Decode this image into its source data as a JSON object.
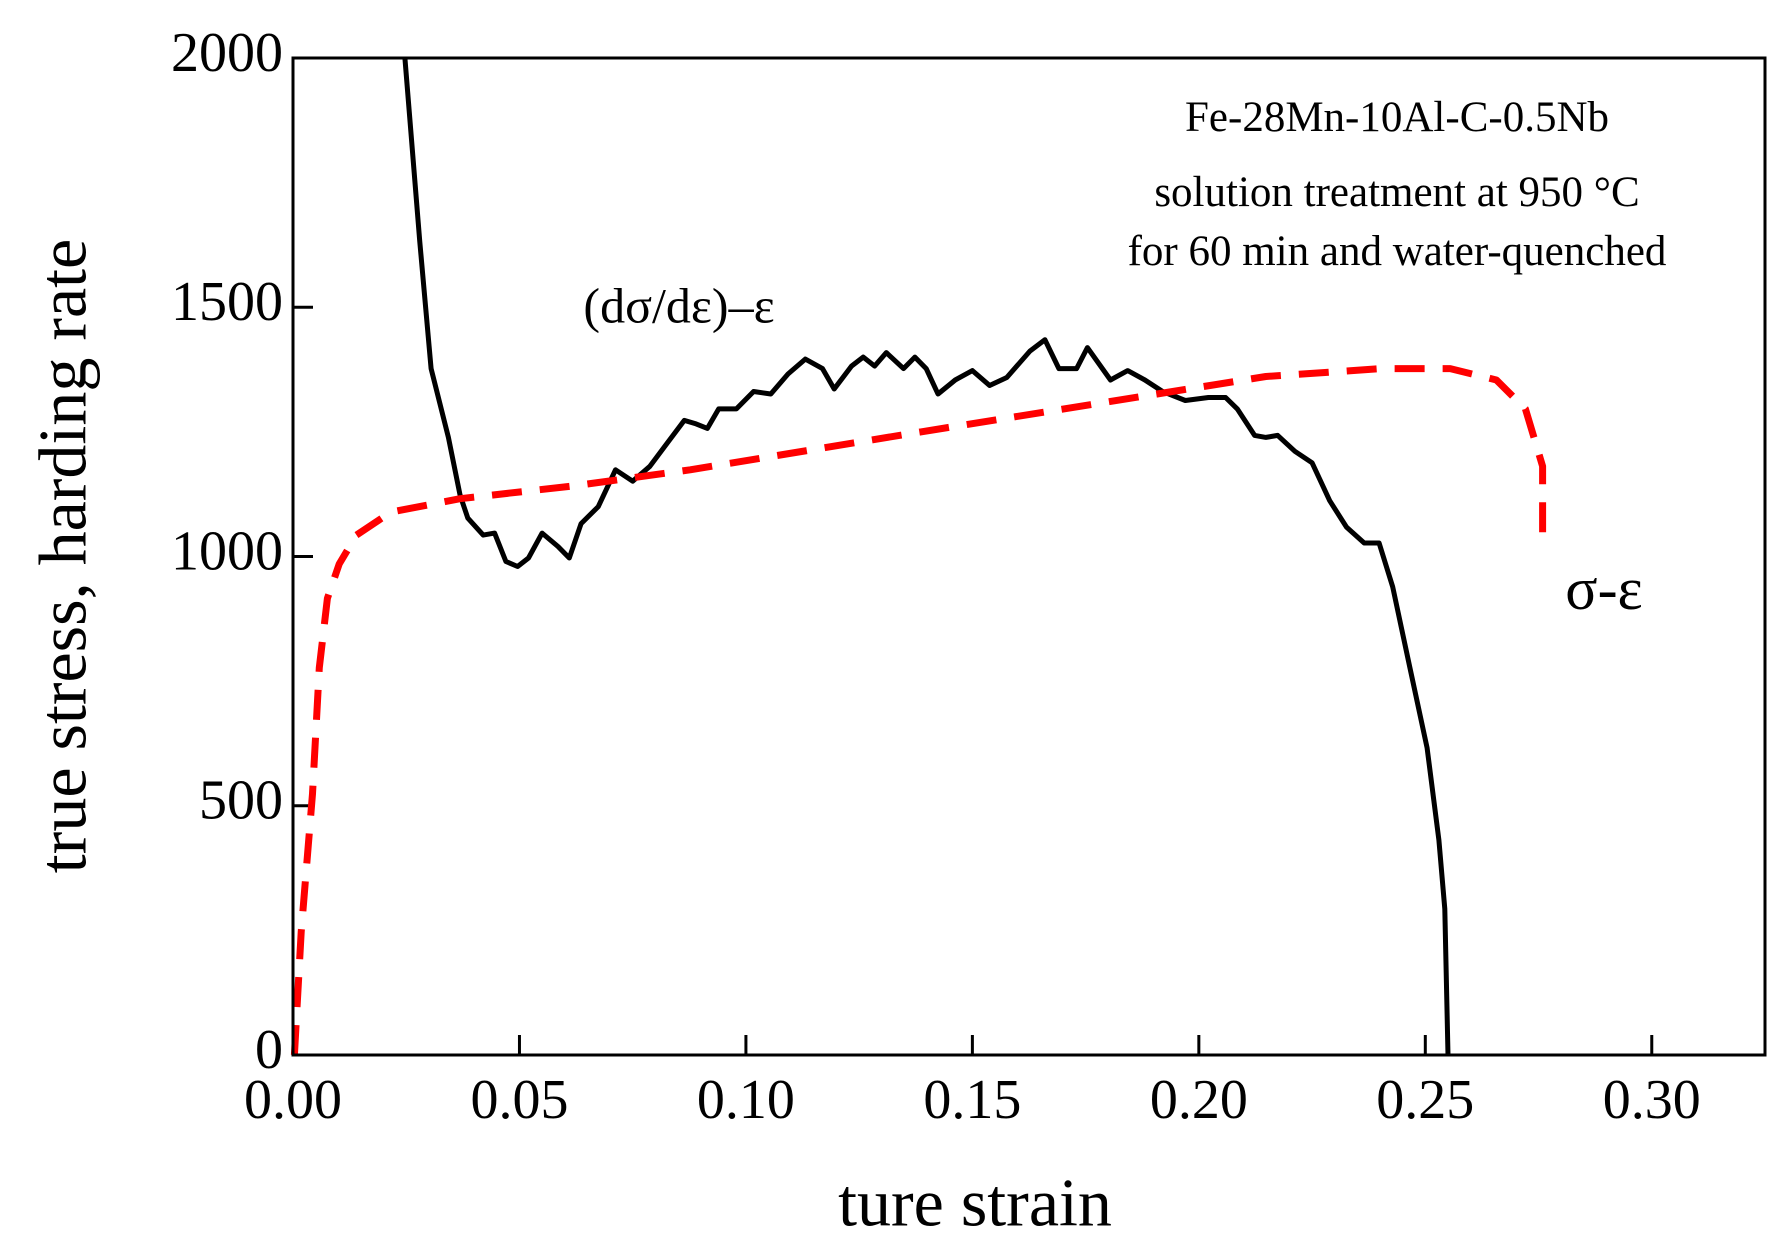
{
  "chart_data": {
    "type": "line",
    "xlabel": "ture strain",
    "ylabel": "true stress, harding rate",
    "annotations": [
      "Fe-28Mn-10Al-C-0.5Nb",
      "solution treatment at 950 °C",
      "for 60 min and water-quenched",
      "(dσ/dε)–ε",
      "σ-ε"
    ],
    "xlim": [
      0,
      0.325
    ],
    "ylim": [
      0,
      2000
    ],
    "xticks": [
      {
        "value": 0,
        "label": "0.00"
      },
      {
        "value": 0.05,
        "label": "0.05"
      },
      {
        "value": 0.1,
        "label": "0.10"
      },
      {
        "value": 0.15,
        "label": "0.15"
      },
      {
        "value": 0.2,
        "label": "0.20"
      },
      {
        "value": 0.25,
        "label": "0.25"
      },
      {
        "value": 0.3,
        "label": "0.30"
      }
    ],
    "yticks": [
      0,
      500,
      1000,
      1500,
      2000
    ],
    "grid": false,
    "series": [
      {
        "color": "#000000",
        "dash": false,
        "x": [
          0.0247,
          0.028,
          0.0305,
          0.0343,
          0.0369,
          0.0386,
          0.042,
          0.0445,
          0.047,
          0.0496,
          0.052,
          0.055,
          0.0585,
          0.061,
          0.0636,
          0.0674,
          0.0712,
          0.075,
          0.0788,
          0.0826,
          0.0864,
          0.089,
          0.0915,
          0.094,
          0.0979,
          0.1017,
          0.1055,
          0.1093,
          0.1131,
          0.1169,
          0.1195,
          0.1233,
          0.1259,
          0.1284,
          0.131,
          0.1348,
          0.1373,
          0.1398,
          0.1424,
          0.1462,
          0.15,
          0.1538,
          0.1576,
          0.1627,
          0.166,
          0.1691,
          0.173,
          0.1754,
          0.1805,
          0.1843,
          0.1881,
          0.192,
          0.197,
          0.2021,
          0.2059,
          0.2085,
          0.2123,
          0.2148,
          0.2174,
          0.2212,
          0.225,
          0.2289,
          0.2326,
          0.2365,
          0.2398,
          0.2428,
          0.2466,
          0.2504,
          0.253,
          0.2543,
          0.255
        ],
        "values": [
          2000,
          1631,
          1377,
          1239,
          1123,
          1077,
          1043,
          1047,
          990,
          980,
          997,
          1047,
          1020,
          997,
          1066,
          1100,
          1174,
          1151,
          1181,
          1227,
          1273,
          1266,
          1257,
          1296,
          1296,
          1331,
          1326,
          1366,
          1396,
          1377,
          1336,
          1382,
          1400,
          1382,
          1409,
          1377,
          1400,
          1377,
          1326,
          1354,
          1373,
          1343,
          1359,
          1412,
          1435,
          1377,
          1377,
          1419,
          1354,
          1373,
          1354,
          1331,
          1313,
          1319,
          1319,
          1296,
          1243,
          1239,
          1243,
          1211,
          1188,
          1112,
          1059,
          1027,
          1027,
          939,
          777,
          616,
          431,
          293,
          0
        ]
      },
      {
        "color": "#ff0000",
        "dash": true,
        "x": [
          0.0003,
          0.0018,
          0.0043,
          0.0058,
          0.0076,
          0.0102,
          0.014,
          0.0216,
          0.0369,
          0.0623,
          0.0877,
          0.1386,
          0.1894,
          0.2148,
          0.2403,
          0.2555,
          0.2657,
          0.2721,
          0.2759,
          0.2759
        ],
        "values": [
          0,
          247,
          524,
          777,
          916,
          985,
          1043,
          1089,
          1116,
          1142,
          1174,
          1250,
          1324,
          1361,
          1377,
          1377,
          1354,
          1296,
          1181,
          1031
        ]
      }
    ]
  }
}
